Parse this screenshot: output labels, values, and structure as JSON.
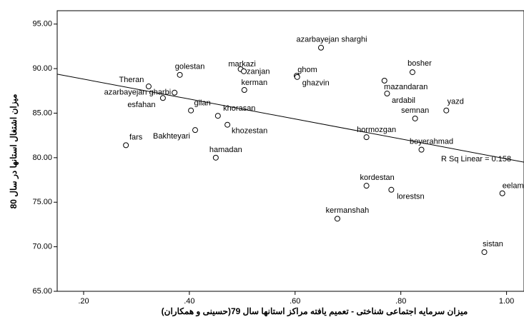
{
  "chart_data": {
    "type": "scatter",
    "xlabel": "میزان سرمایه اجتماعی شناختی - تعمیم یافته مراکز استانها سال 79(حسینی و همکاران)",
    "ylabel": "میزان اشتغال استانها در سال 80",
    "xlim": [
      0.15,
      1.033
    ],
    "ylim": [
      65,
      96.5
    ],
    "xticks": [
      {
        "value": 0.2,
        "label": ".20"
      },
      {
        "value": 0.4,
        "label": ".40"
      },
      {
        "value": 0.6,
        "label": ".60"
      },
      {
        "value": 0.8,
        "label": ".80"
      },
      {
        "value": 1.0,
        "label": "1.00"
      }
    ],
    "yticks": [
      {
        "value": 65,
        "label": "65.00"
      },
      {
        "value": 70,
        "label": "70.00"
      },
      {
        "value": 75,
        "label": "75.00"
      },
      {
        "value": 80,
        "label": "80.00"
      },
      {
        "value": 85,
        "label": "85.00"
      },
      {
        "value": 90,
        "label": "90.00"
      },
      {
        "value": 95,
        "label": "95.00"
      }
    ],
    "labels": [
      "azarbayejan sharghi",
      "bosher",
      "golestan",
      "markazi",
      "zanjan",
      "ghom",
      "ghazvin",
      "Theran",
      "kerman",
      "mazandaran",
      "azarbayejan gharbi",
      "ardabil",
      "esfahan",
      "gilan",
      "yazd",
      "khorasan",
      "semnan",
      "khozestan",
      "Bakhteyari",
      "hormozgan",
      "fars",
      "boyerahmad",
      "hamadan",
      "kordestan",
      "lorestsn",
      "eelam",
      "kermanshah",
      "sistan"
    ],
    "x": [
      0.649,
      0.822,
      0.382,
      0.497,
      0.503,
      0.603,
      0.604,
      0.323,
      0.504,
      0.769,
      0.372,
      0.774,
      0.35,
      0.403,
      0.886,
      0.454,
      0.827,
      0.472,
      0.411,
      0.735,
      0.28,
      0.839,
      0.45,
      0.735,
      0.782,
      0.992,
      0.68,
      0.958
    ],
    "y": [
      92.35,
      89.6,
      89.3,
      89.94,
      89.7,
      89.2,
      89.06,
      88.0,
      87.6,
      88.65,
      87.3,
      87.2,
      86.7,
      85.3,
      85.3,
      84.7,
      84.4,
      83.7,
      83.1,
      82.3,
      81.4,
      80.9,
      80.0,
      76.85,
      76.4,
      76.0,
      73.15,
      69.4
    ],
    "fit_line": {
      "x": [
        0.15,
        1.033
      ],
      "y": [
        89.38,
        79.5
      ]
    },
    "fit_label": "R Sq Linear = 0.158"
  }
}
